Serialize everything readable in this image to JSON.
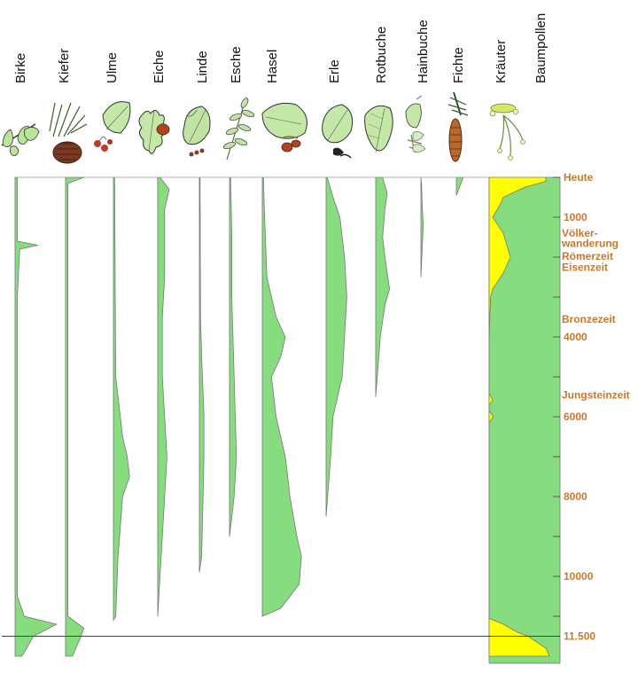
{
  "colors": {
    "tree_curve": "#86dc7e",
    "herb_fill": "#ffff00",
    "tree_total": "#86dc7e",
    "age_text": "#c9782a",
    "outline": "#777777"
  },
  "chart_data": {
    "type": "area",
    "title": "",
    "xlabel": "",
    "ylabel": "",
    "age_axis": {
      "range_years": [
        0,
        11500
      ],
      "grid": false,
      "tick_years": [
        0,
        1000,
        2000,
        3000,
        4000,
        5000,
        6000,
        7000,
        8000,
        9000,
        10000,
        11000,
        11500
      ],
      "labeled": [
        {
          "age": 0,
          "label": "Heute"
        },
        {
          "age": 1000,
          "label": "1000"
        },
        {
          "age": 4000,
          "label": "4000"
        },
        {
          "age": 6000,
          "label": "6000"
        },
        {
          "age": 8000,
          "label": "8000"
        },
        {
          "age": 10000,
          "label": "10000"
        },
        {
          "age": 11500,
          "label": "11.500"
        }
      ],
      "periods": [
        {
          "label": "Völker-",
          "age": 1400
        },
        {
          "label": "wanderung",
          "age": 1660
        },
        {
          "label": "Römerzeit",
          "age": 1980
        },
        {
          "label": "Eisenzeit",
          "age": 2260
        },
        {
          "label": "Bronzezeit",
          "age": 3550
        },
        {
          "label": "Jungsteinzeit",
          "age": 5450
        }
      ]
    },
    "series": [
      {
        "name": "Birke",
        "icon": "birch-leaf-icon",
        "samples": [
          [
            0,
            1
          ],
          [
            1600,
            1
          ],
          [
            1700,
            10
          ],
          [
            1800,
            2
          ],
          [
            3000,
            1
          ],
          [
            10500,
            1
          ],
          [
            11000,
            4
          ],
          [
            11200,
            18
          ],
          [
            11500,
            8
          ],
          [
            12000,
            3
          ]
        ]
      },
      {
        "name": "Kiefer",
        "icon": "pine-cone-icon",
        "samples": [
          [
            0,
            8
          ],
          [
            150,
            1
          ],
          [
            11000,
            1
          ],
          [
            11300,
            8
          ],
          [
            11600,
            6
          ],
          [
            12000,
            3
          ]
        ]
      },
      {
        "name": "Ulme",
        "icon": "elm-leaf-icon",
        "samples": [
          [
            0,
            0.5
          ],
          [
            5000,
            1
          ],
          [
            6000,
            3
          ],
          [
            6500,
            4
          ],
          [
            7000,
            6
          ],
          [
            7500,
            7
          ],
          [
            8000,
            4
          ],
          [
            9500,
            2
          ],
          [
            11000,
            1
          ],
          [
            11100,
            0
          ]
        ]
      },
      {
        "name": "Eiche",
        "icon": "oak-leaf-icon",
        "samples": [
          [
            0,
            1
          ],
          [
            300,
            5
          ],
          [
            800,
            3
          ],
          [
            2500,
            3
          ],
          [
            3500,
            2
          ],
          [
            5000,
            2
          ],
          [
            7000,
            4
          ],
          [
            9000,
            2
          ],
          [
            11000,
            0
          ]
        ]
      },
      {
        "name": "Linde",
        "icon": "linden-leaf-icon",
        "samples": [
          [
            0,
            0.3
          ],
          [
            3500,
            0.5
          ],
          [
            4500,
            1
          ],
          [
            6000,
            2
          ],
          [
            7000,
            2
          ],
          [
            9500,
            1
          ],
          [
            9900,
            0
          ]
        ]
      },
      {
        "name": "Esche",
        "icon": "ash-leaf-icon",
        "samples": [
          [
            0,
            0.5
          ],
          [
            1500,
            1
          ],
          [
            3000,
            1
          ],
          [
            5000,
            2
          ],
          [
            7000,
            3
          ],
          [
            8000,
            2
          ],
          [
            9000,
            0
          ]
        ]
      },
      {
        "name": "Hasel",
        "icon": "hazel-leaf-icon",
        "samples": [
          [
            0,
            0.5
          ],
          [
            1000,
            1
          ],
          [
            2500,
            2
          ],
          [
            3500,
            6
          ],
          [
            4000,
            10
          ],
          [
            4500,
            8
          ],
          [
            5000,
            4
          ],
          [
            6000,
            6
          ],
          [
            7000,
            10
          ],
          [
            8000,
            12
          ],
          [
            9000,
            15
          ],
          [
            9500,
            17
          ],
          [
            10200,
            16
          ],
          [
            10800,
            8
          ],
          [
            11000,
            0
          ]
        ]
      },
      {
        "name": "Erle",
        "icon": "alder-leaf-icon",
        "samples": [
          [
            0,
            0.5
          ],
          [
            500,
            3
          ],
          [
            1000,
            6
          ],
          [
            1500,
            7
          ],
          [
            2000,
            8
          ],
          [
            3000,
            9
          ],
          [
            4000,
            8
          ],
          [
            5000,
            7
          ],
          [
            6000,
            3
          ],
          [
            7000,
            2
          ],
          [
            8500,
            0
          ]
        ]
      },
      {
        "name": "Rotbuche",
        "icon": "beech-leaf-icon",
        "samples": [
          [
            0,
            3
          ],
          [
            400,
            5
          ],
          [
            800,
            4
          ],
          [
            1500,
            3
          ],
          [
            2000,
            4
          ],
          [
            2800,
            6
          ],
          [
            3200,
            4
          ],
          [
            4000,
            2
          ],
          [
            5500,
            0
          ]
        ]
      },
      {
        "name": "Hainbuche",
        "icon": "hornbeam-leaf-icon",
        "samples": [
          [
            0,
            0
          ],
          [
            200,
            0.3
          ],
          [
            600,
            0.5
          ],
          [
            1200,
            1
          ],
          [
            2500,
            0
          ]
        ]
      },
      {
        "name": "Fichte",
        "icon": "spruce-cone-icon",
        "samples": [
          [
            0,
            3
          ],
          [
            300,
            1
          ],
          [
            450,
            0
          ]
        ]
      }
    ],
    "herbs_vs_trees": {
      "left_series": "Kräuter",
      "right_series": "Baumpollen",
      "left_icon": "herb-flower-icon",
      "herb_percent": [
        [
          0,
          80
        ],
        [
          100,
          80
        ],
        [
          250,
          50
        ],
        [
          500,
          20
        ],
        [
          700,
          15
        ],
        [
          1000,
          5
        ],
        [
          1400,
          20
        ],
        [
          1700,
          25
        ],
        [
          2000,
          30
        ],
        [
          2400,
          20
        ],
        [
          2800,
          5
        ],
        [
          3000,
          2
        ],
        [
          4000,
          0
        ],
        [
          5400,
          0
        ],
        [
          5600,
          5
        ],
        [
          5700,
          0
        ],
        [
          5850,
          0
        ],
        [
          6000,
          6
        ],
        [
          6150,
          0
        ],
        [
          11050,
          0
        ],
        [
          11200,
          20
        ],
        [
          11400,
          40
        ],
        [
          11500,
          55
        ],
        [
          11800,
          80
        ],
        [
          12000,
          85
        ]
      ]
    }
  }
}
